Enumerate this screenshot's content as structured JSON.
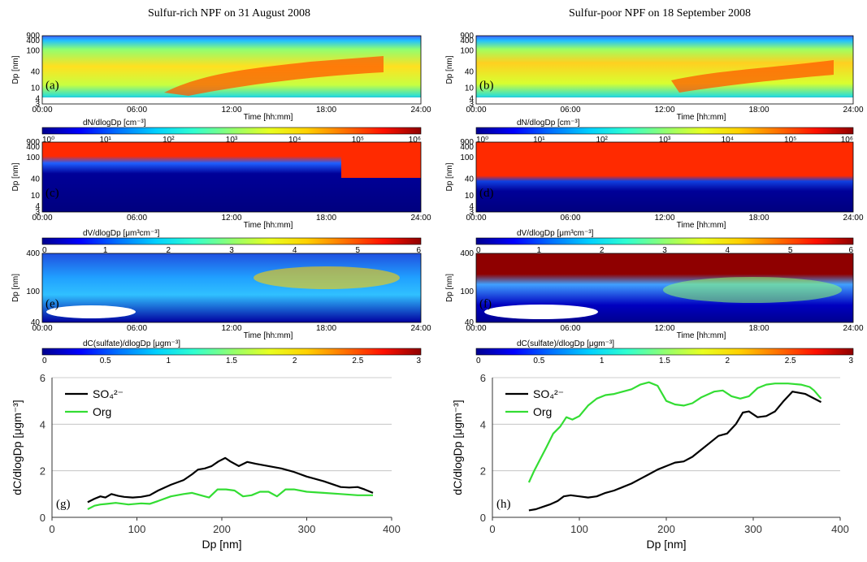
{
  "titles": {
    "left": "Sulfur-rich NPF on 31 August 2008",
    "right": "Sulfur-poor NPF on 18 September 2008"
  },
  "colormap": [
    "#00008f",
    "#0000ff",
    "#0070ff",
    "#00d0ff",
    "#30ffd0",
    "#90ff70",
    "#e8ff20",
    "#ffd000",
    "#ff7000",
    "#ff1000",
    "#8f0000"
  ],
  "time_ticks": [
    "00:00",
    "06:00",
    "12:00",
    "18:00",
    "24:00"
  ],
  "time_label": "Time [hh:mm]",
  "dp_label": "Dp [nm]",
  "dp_ticks_abc": [
    "900",
    "400",
    "100",
    "40",
    "10",
    "4",
    "3"
  ],
  "dp_ticks_cd": [
    "900",
    "400",
    "100",
    "40",
    "10",
    "4",
    "3"
  ],
  "dp_ticks_ef": [
    "400",
    "100",
    "40"
  ],
  "cb_number_label": "dN/dlogDp [cm⁻³]",
  "cb_number_ticks": [
    "10⁰",
    "10¹",
    "10²",
    "10³",
    "10⁴",
    "10⁵",
    "10⁶"
  ],
  "cb_volume_label": "dV/dlogDp [μm³cm⁻³]",
  "cb_volume_ticks": [
    "0",
    "1",
    "2",
    "3",
    "4",
    "5",
    "6"
  ],
  "cb_sulfate_label": "dC(sulfate)/dlogDp [μgm⁻³]",
  "cb_sulfate_ticks": [
    "0",
    "0.5",
    "1",
    "1.5",
    "2",
    "2.5",
    "3"
  ],
  "panels": {
    "a": "(a)",
    "b": "(b)",
    "c": "(c)",
    "d": "(d)",
    "e": "(e)",
    "f": "(f)",
    "g": "(g)",
    "h": "(h)"
  },
  "chart_data": [
    {
      "type": "line",
      "panel": "(g)",
      "xlabel": "Dp [nm]",
      "ylabel": "dC/dlogDp [μgm⁻³]",
      "xlim": [
        0,
        400
      ],
      "ylim": [
        0,
        6
      ],
      "xticks": [
        "0",
        "100",
        "200",
        "300",
        "400"
      ],
      "yticks": [
        "0",
        "2",
        "4",
        "6"
      ],
      "legend_position": "top-left",
      "series": [
        {
          "name": "SO₄²⁻",
          "color": "#000000",
          "x": [
            42,
            50,
            57,
            63,
            70,
            78,
            85,
            95,
            105,
            115,
            125,
            140,
            155,
            165,
            172,
            180,
            188,
            196,
            204,
            210,
            220,
            230,
            240,
            255,
            270,
            285,
            300,
            320,
            340,
            350,
            360,
            368,
            378
          ],
          "y": [
            0.65,
            0.8,
            0.9,
            0.85,
            1.0,
            0.92,
            0.88,
            0.85,
            0.88,
            0.95,
            1.15,
            1.4,
            1.6,
            1.85,
            2.05,
            2.1,
            2.2,
            2.4,
            2.55,
            2.4,
            2.2,
            2.38,
            2.3,
            2.2,
            2.1,
            1.95,
            1.75,
            1.55,
            1.3,
            1.28,
            1.3,
            1.2,
            1.05
          ]
        },
        {
          "name": "Org",
          "color": "#33dd33",
          "x": [
            42,
            50,
            57,
            65,
            75,
            90,
            105,
            115,
            125,
            140,
            155,
            165,
            175,
            185,
            195,
            205,
            215,
            225,
            235,
            245,
            255,
            265,
            275,
            285,
            300,
            320,
            340,
            360,
            378
          ],
          "y": [
            0.35,
            0.5,
            0.55,
            0.58,
            0.62,
            0.55,
            0.6,
            0.58,
            0.7,
            0.9,
            1.0,
            1.05,
            0.95,
            0.85,
            1.2,
            1.2,
            1.15,
            0.9,
            0.95,
            1.1,
            1.1,
            0.9,
            1.2,
            1.2,
            1.1,
            1.05,
            1.0,
            0.95,
            0.95
          ]
        }
      ]
    },
    {
      "type": "line",
      "panel": "(h)",
      "xlabel": "Dp [nm]",
      "ylabel": "dC/dlogDp [μgm⁻³]",
      "xlim": [
        0,
        400
      ],
      "ylim": [
        0,
        6
      ],
      "xticks": [
        "0",
        "100",
        "200",
        "300",
        "400"
      ],
      "yticks": [
        "0",
        "2",
        "4",
        "6"
      ],
      "legend_position": "top-left",
      "series": [
        {
          "name": "SO₄²⁻",
          "color": "#000000",
          "x": [
            42,
            50,
            58,
            66,
            75,
            82,
            90,
            100,
            110,
            120,
            130,
            140,
            150,
            160,
            170,
            180,
            190,
            200,
            210,
            220,
            230,
            240,
            250,
            260,
            270,
            280,
            288,
            295,
            305,
            315,
            325,
            335,
            345,
            360,
            378
          ],
          "y": [
            0.3,
            0.35,
            0.45,
            0.55,
            0.7,
            0.9,
            0.95,
            0.9,
            0.85,
            0.9,
            1.05,
            1.15,
            1.3,
            1.45,
            1.65,
            1.85,
            2.05,
            2.2,
            2.35,
            2.4,
            2.6,
            2.9,
            3.2,
            3.5,
            3.6,
            4.0,
            4.5,
            4.55,
            4.3,
            4.35,
            4.55,
            5.0,
            5.4,
            5.3,
            4.95
          ]
        },
        {
          "name": "Org",
          "color": "#33dd33",
          "x": [
            42,
            48,
            55,
            62,
            70,
            78,
            85,
            92,
            100,
            110,
            120,
            130,
            140,
            150,
            160,
            170,
            180,
            190,
            200,
            210,
            220,
            230,
            240,
            255,
            265,
            275,
            285,
            295,
            305,
            315,
            325,
            340,
            355,
            365,
            370,
            378
          ],
          "y": [
            1.5,
            2.0,
            2.5,
            3.0,
            3.6,
            3.9,
            4.3,
            4.2,
            4.35,
            4.8,
            5.1,
            5.25,
            5.3,
            5.4,
            5.5,
            5.7,
            5.8,
            5.65,
            5.0,
            4.85,
            4.8,
            4.9,
            5.15,
            5.4,
            5.45,
            5.2,
            5.1,
            5.2,
            5.55,
            5.7,
            5.75,
            5.75,
            5.7,
            5.6,
            5.45,
            5.1
          ]
        }
      ]
    }
  ]
}
